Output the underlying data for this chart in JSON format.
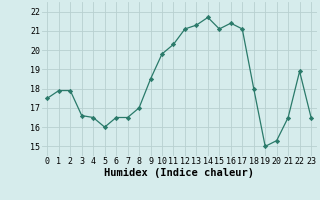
{
  "x": [
    0,
    1,
    2,
    3,
    4,
    5,
    6,
    7,
    8,
    9,
    10,
    11,
    12,
    13,
    14,
    15,
    16,
    17,
    18,
    19,
    20,
    21,
    22,
    23
  ],
  "y": [
    17.5,
    17.9,
    17.9,
    16.6,
    16.5,
    16.0,
    16.5,
    16.5,
    17.0,
    18.5,
    19.8,
    20.3,
    21.1,
    21.3,
    21.7,
    21.1,
    21.4,
    21.1,
    18.0,
    15.0,
    15.3,
    16.5,
    18.9,
    16.5
  ],
  "line_color": "#2a7a6a",
  "marker": "D",
  "marker_size": 2.2,
  "bg_color": "#d6ecec",
  "grid_color": "#b8d0d0",
  "xlabel": "Humidex (Indice chaleur)",
  "xlim": [
    -0.5,
    23.5
  ],
  "ylim": [
    14.5,
    22.5
  ],
  "yticks": [
    15,
    16,
    17,
    18,
    19,
    20,
    21,
    22
  ],
  "xticks": [
    0,
    1,
    2,
    3,
    4,
    5,
    6,
    7,
    8,
    9,
    10,
    11,
    12,
    13,
    14,
    15,
    16,
    17,
    18,
    19,
    20,
    21,
    22,
    23
  ],
  "tick_label_fontsize": 6.0,
  "xlabel_fontsize": 7.5
}
